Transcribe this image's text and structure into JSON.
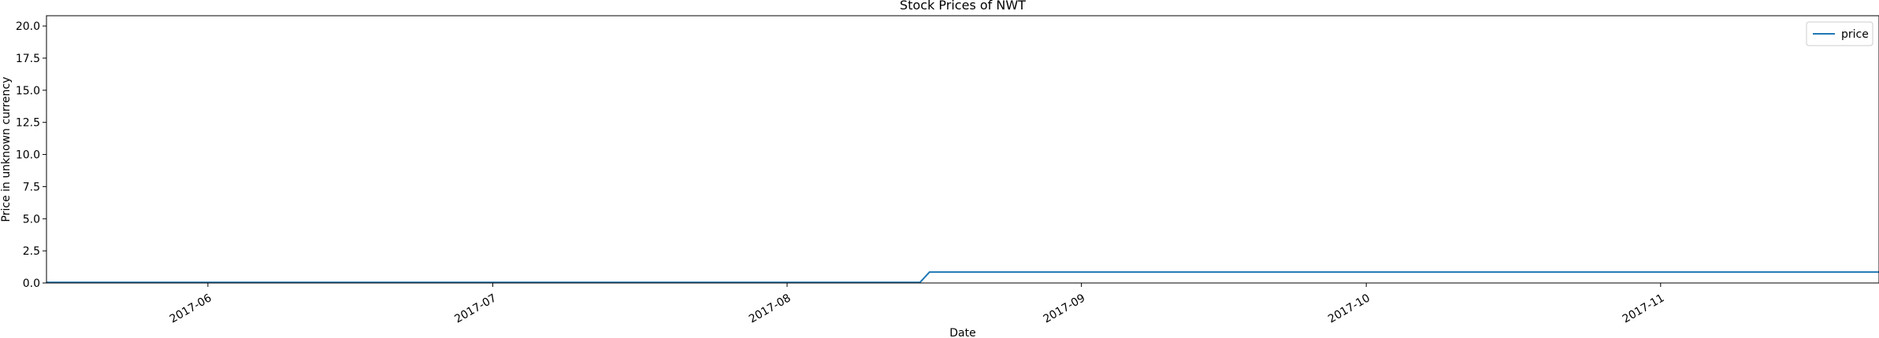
{
  "chart_data": {
    "type": "line",
    "title": "Stock Prices of NWT",
    "xlabel": "Date",
    "ylabel": "Price in unknown currency",
    "xlim": [
      "2017-05-15",
      "2017-11-24"
    ],
    "ylim": [
      0,
      20.8
    ],
    "xticks": [
      "2017-06",
      "2017-07",
      "2017-08",
      "2017-09",
      "2017-10",
      "2017-11"
    ],
    "yticks": [
      "0.0",
      "2.5",
      "5.0",
      "7.5",
      "10.0",
      "12.5",
      "15.0",
      "17.5",
      "20.0"
    ],
    "legend_position": "top-right",
    "grid": false,
    "series": [
      {
        "name": "price",
        "color": "#1f77b4",
        "x": [
          "2017-05-15",
          "2017-08-15",
          "2017-08-16",
          "2017-11-24"
        ],
        "y": [
          0.05,
          0.05,
          0.85,
          0.85
        ]
      }
    ]
  }
}
